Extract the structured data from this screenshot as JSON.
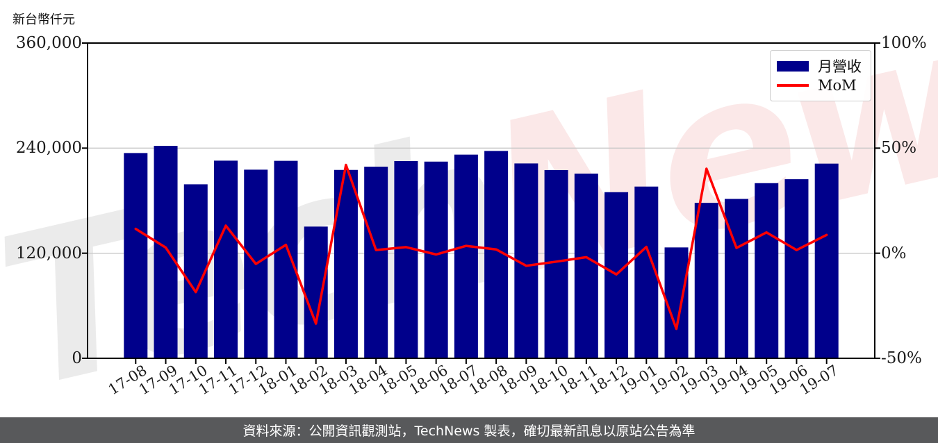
{
  "page": {
    "y_axis_title": "新台幣仟元",
    "footer": "資料來源：公開資訊觀測站，TechNews 製表，確切最新訊息以原站公告為準",
    "watermark": {
      "part1": "Tech",
      "part2": "News"
    }
  },
  "chart_data": {
    "type": "bar",
    "title": "",
    "categories": [
      "17-08",
      "17-09",
      "17-10",
      "17-11",
      "17-12",
      "18-01",
      "18-02",
      "18-03",
      "18-04",
      "18-05",
      "18-06",
      "18-07",
      "18-08",
      "18-09",
      "18-10",
      "18-11",
      "18-12",
      "19-01",
      "19-02",
      "19-03",
      "19-04",
      "19-05",
      "19-06",
      "19-07"
    ],
    "series": [
      {
        "name": "月營收",
        "type": "bar",
        "axis": "left",
        "color": "#00008B",
        "values": [
          234400,
          242600,
          198700,
          225700,
          215400,
          225500,
          150400,
          215100,
          218800,
          225200,
          224600,
          232600,
          236800,
          222500,
          214900,
          210900,
          189700,
          196100,
          126600,
          177500,
          182000,
          200000,
          204500,
          222300
        ]
      },
      {
        "name": "MoM",
        "type": "line",
        "axis": "right",
        "color": "#FF0000",
        "values": [
          11.6,
          2.7,
          -18.5,
          13.1,
          -5.1,
          4.0,
          -33.5,
          42.0,
          1.5,
          2.9,
          -0.6,
          3.5,
          1.8,
          -6.0,
          -4.0,
          -1.9,
          -10.1,
          3.0,
          -36.0,
          40.2,
          2.5,
          9.9,
          1.5,
          8.7
        ]
      }
    ],
    "left_axis": {
      "title": "新台幣仟元",
      "min": 0,
      "max": 360000,
      "ticks": [
        {
          "label": "0",
          "value": 0
        },
        {
          "label": "120,000",
          "value": 120000
        },
        {
          "label": "240,000",
          "value": 240000
        },
        {
          "label": "360,000",
          "value": 360000
        }
      ],
      "grid_values": [
        120000,
        240000
      ]
    },
    "right_axis": {
      "min": -50,
      "max": 100,
      "ticks": [
        {
          "label": "-50%",
          "value": -50
        },
        {
          "label": "0%",
          "value": 0
        },
        {
          "label": "50%",
          "value": 50
        },
        {
          "label": "100%",
          "value": 100
        }
      ]
    },
    "legend": {
      "position": "top-right",
      "entries": [
        "月營收",
        "MoM"
      ]
    },
    "grid": "horizontal",
    "colors": {
      "bar": "#00008B",
      "line": "#FF0000",
      "gridline": "#c8c8c8",
      "spine": "#000000",
      "footer_bg": "#58595b",
      "footer_text": "#ffffff"
    }
  }
}
